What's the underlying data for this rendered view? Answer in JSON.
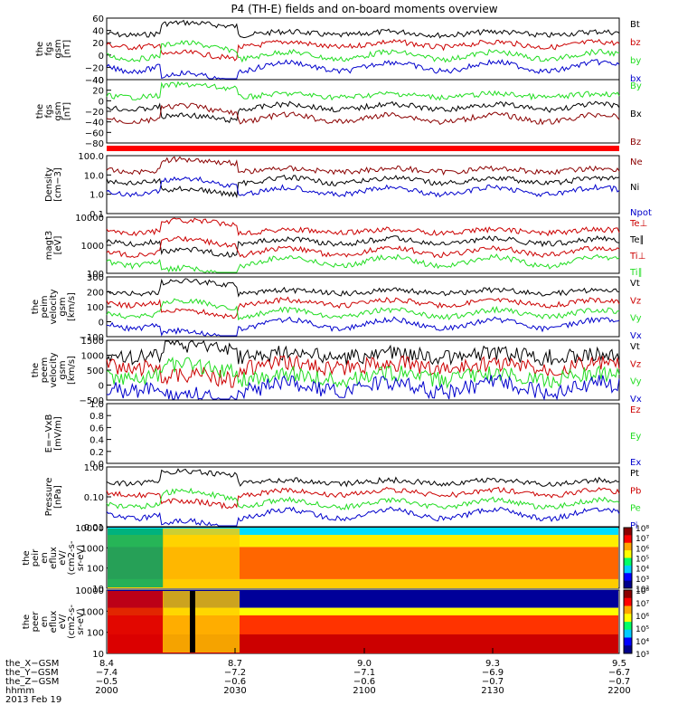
{
  "title": "P4 (TH-E) fields and on-board moments overview",
  "colors": {
    "black": "#000000",
    "red": "#cc0000",
    "green": "#22dd22",
    "blue": "#0000cc",
    "darkred": "#8b0000"
  },
  "chart_data": [
    {
      "type": "line",
      "ylabel": [
        "the",
        "fgs",
        "gsm",
        "[nT]"
      ],
      "ylim": [
        -40,
        60
      ],
      "yticks": [
        "60",
        "40",
        "20",
        "0",
        "−20",
        "−40"
      ],
      "legend": [
        {
          "name": "Bt",
          "color": "black"
        },
        {
          "name": "bz",
          "color": "red"
        },
        {
          "name": "by",
          "color": "green"
        },
        {
          "name": "bx",
          "color": "blue"
        }
      ]
    },
    {
      "type": "line",
      "ylabel": [
        "the",
        "fgs",
        "gsm",
        "[nT]"
      ],
      "ylim": [
        -80,
        40
      ],
      "yticks": [
        "40",
        "20",
        "0",
        "−20",
        "−40",
        "−60",
        "−80"
      ],
      "legend": [
        {
          "name": "By",
          "color": "green"
        },
        {
          "name": "Bx",
          "color": "black"
        },
        {
          "name": "Bz",
          "color": "darkred"
        }
      ]
    },
    {
      "type": "line",
      "ylabel": [
        "Density",
        "[cm−3]"
      ],
      "scale": "log",
      "yticks": [
        "100.0",
        "10.0",
        "1.0",
        "0.1"
      ],
      "legend": [
        {
          "name": "Ne",
          "color": "darkred"
        },
        {
          "name": "Ni",
          "color": "black"
        },
        {
          "name": "Npot",
          "color": "blue"
        }
      ]
    },
    {
      "type": "line",
      "ylabel": [
        "magt3",
        "[eV]"
      ],
      "scale": "log",
      "yticks": [
        "10000",
        "1000",
        "100"
      ],
      "legend": [
        {
          "name": "Te⊥",
          "color": "red"
        },
        {
          "name": "Te∥",
          "color": "black"
        },
        {
          "name": "Ti⊥",
          "color": "red"
        },
        {
          "name": "Ti∥",
          "color": "green"
        }
      ]
    },
    {
      "type": "line",
      "ylabel": [
        "the",
        "peim",
        "velocity",
        "gsm",
        "[km/s]"
      ],
      "ylim": [
        -100,
        300
      ],
      "yticks": [
        "300",
        "200",
        "100",
        "0",
        "−100"
      ],
      "legend": [
        {
          "name": "Vt",
          "color": "black"
        },
        {
          "name": "Vz",
          "color": "red"
        },
        {
          "name": "Vy",
          "color": "green"
        },
        {
          "name": "Vx",
          "color": "blue"
        }
      ]
    },
    {
      "type": "line",
      "ylabel": [
        "the",
        "peem",
        "velocity",
        "gsm",
        "[km/s]"
      ],
      "ylim": [
        -500,
        1500
      ],
      "yticks": [
        "1500",
        "1000",
        "500",
        "0",
        "−500"
      ],
      "legend": [
        {
          "name": "Vt",
          "color": "black"
        },
        {
          "name": "Vz",
          "color": "red"
        },
        {
          "name": "Vy",
          "color": "green"
        },
        {
          "name": "Vx",
          "color": "blue"
        }
      ]
    },
    {
      "type": "line",
      "ylabel": [
        "E=−VxB",
        "[mV/m]"
      ],
      "ylim": [
        0,
        1
      ],
      "yticks": [
        "1.0",
        "0.8",
        "0.6",
        "0.4",
        "0.2",
        "0.0"
      ],
      "legend": [
        {
          "name": "Ez",
          "color": "red"
        },
        {
          "name": "Ey",
          "color": "green"
        },
        {
          "name": "Ex",
          "color": "blue"
        }
      ]
    },
    {
      "type": "line",
      "ylabel": [
        "Pressure",
        "[nPa]"
      ],
      "scale": "log",
      "yticks": [
        "1.00",
        "0.10",
        "0.01"
      ],
      "legend": [
        {
          "name": "Pt",
          "color": "black"
        },
        {
          "name": "Pb",
          "color": "red"
        },
        {
          "name": "Pe",
          "color": "green"
        },
        {
          "name": "Pi",
          "color": "blue"
        }
      ]
    },
    {
      "type": "heatmap",
      "ylabel": [
        "the",
        "peir",
        "en",
        "eflux",
        "eV/",
        "(cm2-s-",
        "sr-eV)"
      ],
      "scale": "log",
      "yticks": [
        "10000",
        "1000",
        "100",
        "10"
      ],
      "colorbar": {
        "ticks": [
          "10⁸",
          "10⁷",
          "10⁶",
          "10⁵",
          "10⁴",
          "10³",
          "10²"
        ]
      }
    },
    {
      "type": "heatmap",
      "ylabel": [
        "the",
        "peer",
        "en",
        "eflux",
        "eV/",
        "(cm2-s-",
        "sr-eV)"
      ],
      "scale": "log",
      "yticks": [
        "10000",
        "1000",
        "100",
        "10"
      ],
      "colorbar": {
        "ticks": [
          "10⁸",
          "10⁷",
          "10⁶",
          "10⁵",
          "10⁴",
          "10³"
        ]
      }
    }
  ],
  "x_axis": {
    "rows": [
      {
        "label": "the_X−GSM",
        "values": [
          "8.4",
          "8.7",
          "9.0",
          "9.3",
          "9.5"
        ]
      },
      {
        "label": "the_Y−GSM",
        "values": [
          "−7.4",
          "−7.2",
          "−7.1",
          "−6.9",
          "−6.7"
        ]
      },
      {
        "label": "the_Z−GSM",
        "values": [
          "−0.5",
          "−0.6",
          "−0.6",
          "−0.7",
          "−0.7"
        ]
      },
      {
        "label": "hhmm",
        "values": [
          "2000",
          "2030",
          "2100",
          "2130",
          "2200"
        ]
      }
    ],
    "date": "2013 Feb 19"
  }
}
